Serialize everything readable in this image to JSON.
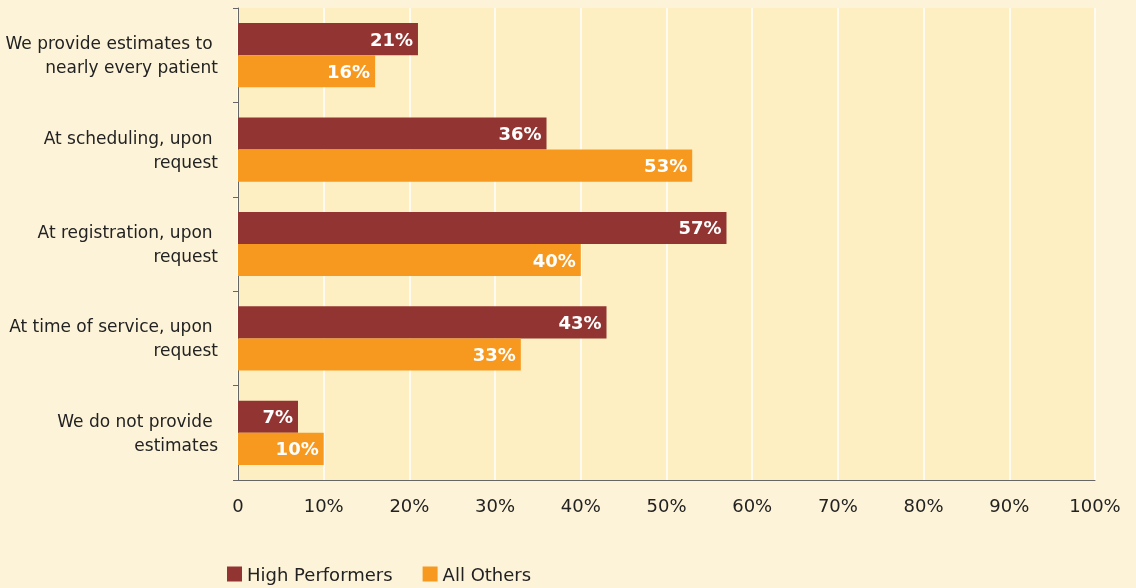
{
  "chart_data": {
    "type": "bar",
    "orientation": "horizontal",
    "categories": [
      "We provide estimates to nearly every patient",
      "At scheduling, upon request",
      "At registration, upon request",
      "At time of service, upon request",
      "We do not provide estimates"
    ],
    "series": [
      {
        "name": "High Performers",
        "color": "#923431",
        "values": [
          21,
          36,
          57,
          43,
          7
        ],
        "value_labels": [
          "21%",
          "36%",
          "57%",
          "43%",
          "7%"
        ]
      },
      {
        "name": "All Others",
        "color": "#f7991f",
        "values": [
          16,
          53,
          40,
          33,
          10
        ],
        "value_labels": [
          "16%",
          "53%",
          "40%",
          "33%",
          "10%"
        ]
      }
    ],
    "xlim": [
      0,
      100
    ],
    "xticks": [
      0,
      {
        "value": 10,
        "label": "10%"
      },
      {
        "value": 20,
        "label": "20%"
      },
      {
        "value": 30,
        "label": "30%"
      },
      {
        "value": 40,
        "label": "40%"
      },
      {
        "value": 50,
        "label": "50%"
      },
      {
        "value": 60,
        "label": "60%"
      },
      {
        "value": 70,
        "label": "70%"
      },
      {
        "value": 80,
        "label": "80%"
      },
      {
        "value": 90,
        "label": "90%"
      },
      {
        "value": 100,
        "label": "100%"
      }
    ],
    "grid": "x",
    "legend": "bottom left"
  }
}
